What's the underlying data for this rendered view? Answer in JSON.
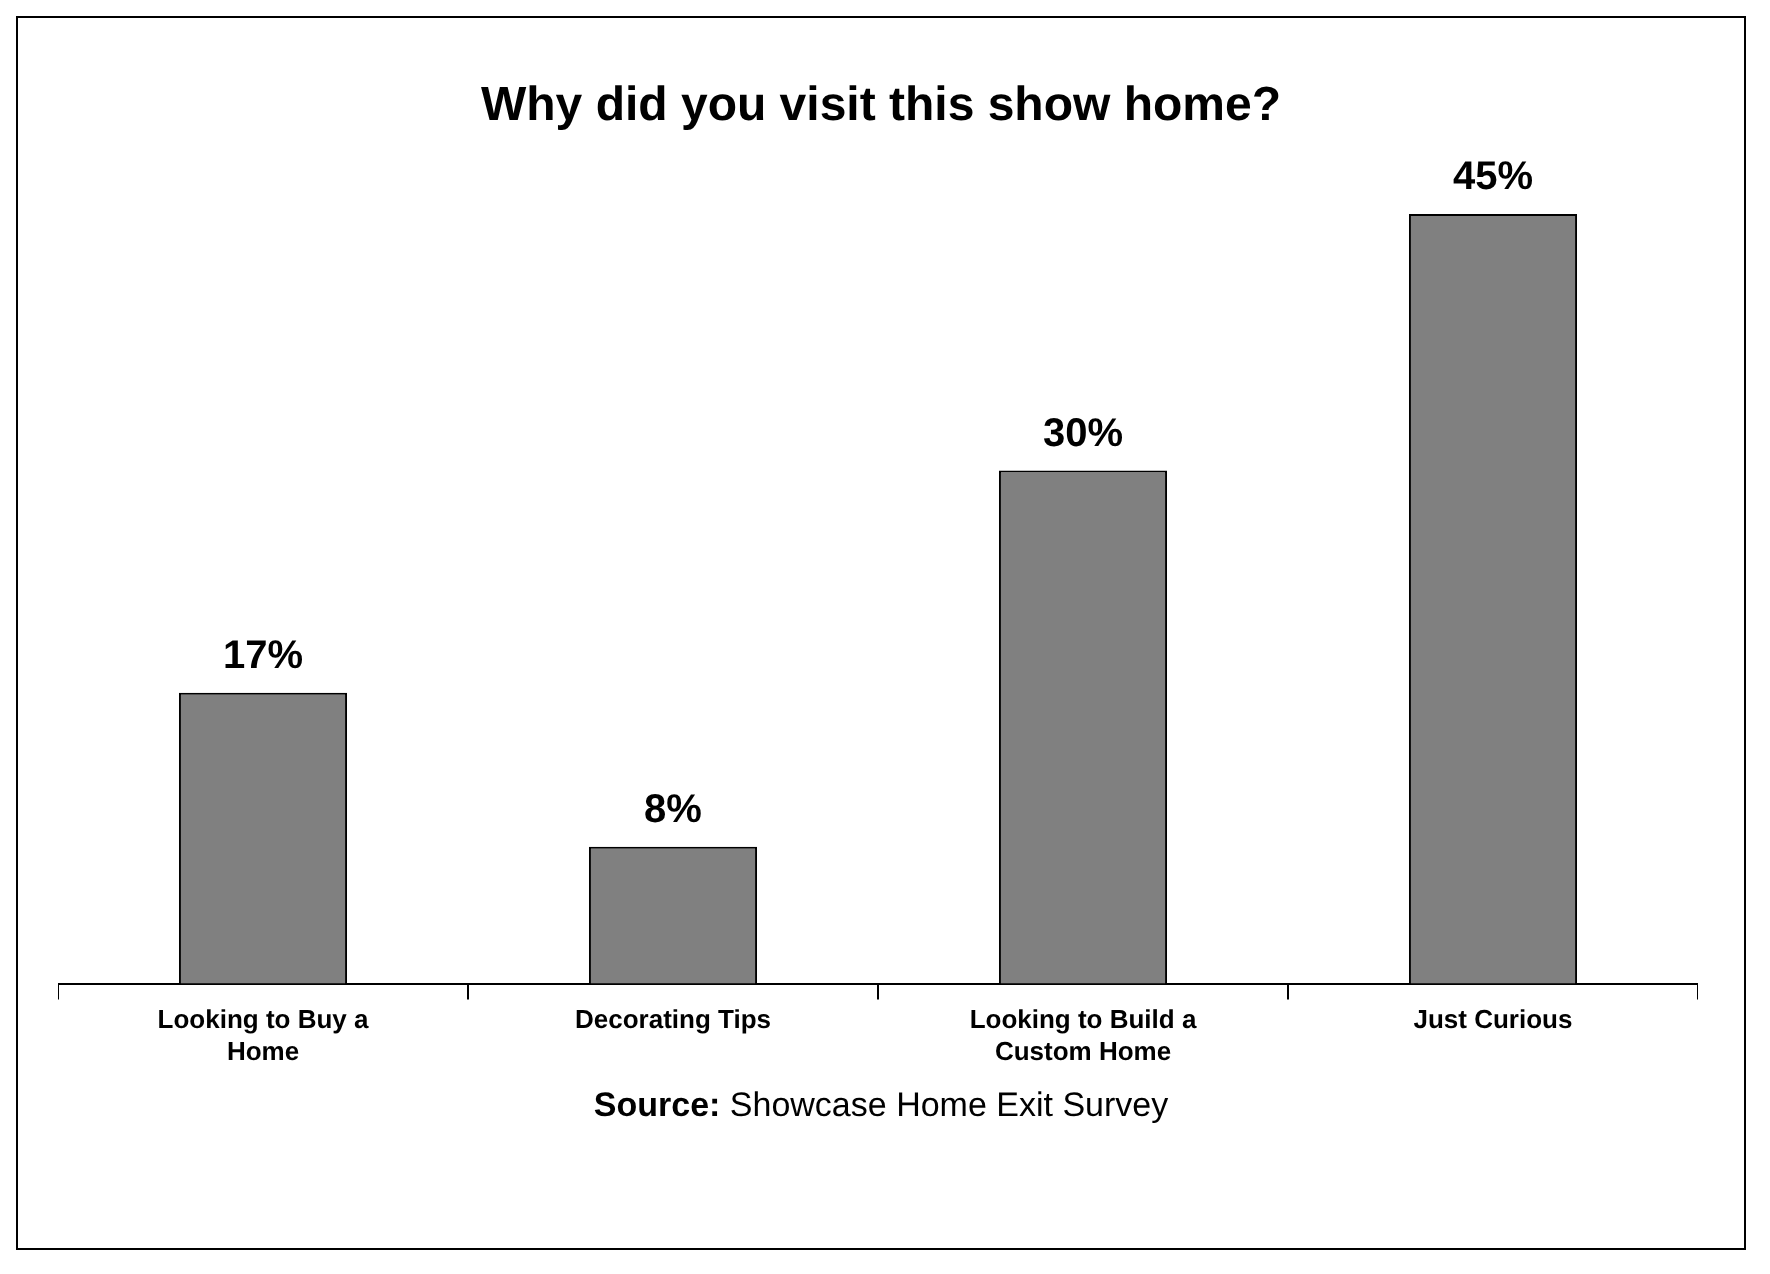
{
  "chart_data": {
    "type": "bar",
    "title": "Why did you visit this show home?",
    "categories": [
      "Looking to Buy a Home",
      "Decorating Tips",
      "Looking to Build a Custom Home",
      "Just Curious"
    ],
    "values": [
      17,
      8,
      30,
      45
    ],
    "value_labels": [
      "17%",
      "8%",
      "30%",
      "45%"
    ],
    "color": "#808080",
    "grid": false,
    "legend": false,
    "annotations": [
      "Source: Showcase Home Exit Survey"
    ]
  }
}
